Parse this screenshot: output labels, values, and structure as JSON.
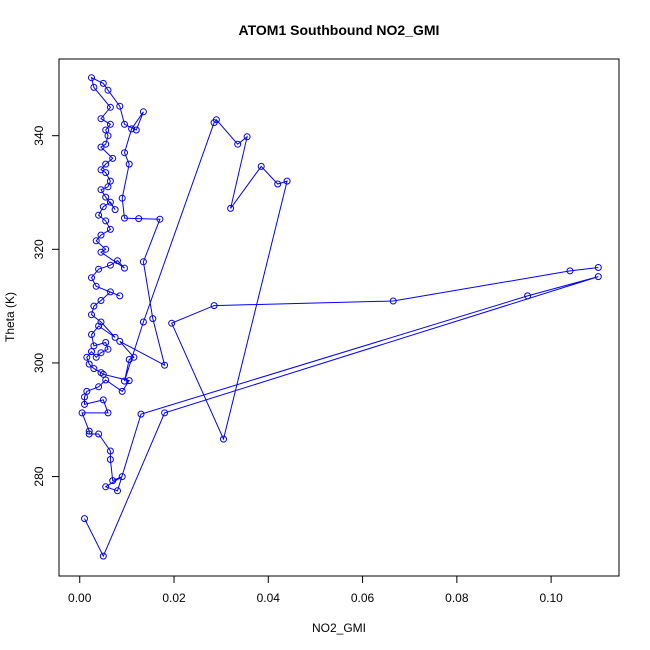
{
  "chart_data": {
    "type": "line",
    "title": "ATOM1 Southbound NO2_GMI",
    "xlabel": "NO2_GMI",
    "ylabel": "Theta (K)",
    "xlim": [
      -0.0044,
      0.1144
    ],
    "ylim": [
      262.5,
      353.5
    ],
    "xticks": [
      0.0,
      0.02,
      0.04,
      0.06,
      0.08,
      0.1
    ],
    "xtick_labels": [
      "0.00",
      "0.02",
      "0.04",
      "0.06",
      "0.08",
      "0.10"
    ],
    "yticks": [
      280,
      300,
      320,
      340
    ],
    "ytick_labels": [
      "280",
      "300",
      "320",
      "340"
    ],
    "grid": false,
    "color": "#0000ff",
    "marker": "open-circle",
    "series": [
      {
        "points": [
          [
            0.001,
            272.6
          ],
          [
            0.005,
            266.0
          ],
          [
            0.018,
            291.2
          ],
          [
            0.11,
            315.2
          ],
          [
            0.095,
            311.8
          ],
          [
            0.013,
            291.0
          ],
          [
            0.008,
            277.5
          ],
          [
            0.0055,
            278.2
          ],
          [
            0.009,
            280.0
          ],
          [
            0.007,
            279.3
          ],
          [
            0.0065,
            283.0
          ],
          [
            0.0065,
            284.5
          ],
          [
            0.004,
            287.5
          ],
          [
            0.002,
            287.5
          ],
          [
            0.002,
            288.0
          ],
          [
            0.0005,
            291.2
          ],
          [
            0.006,
            291.2
          ],
          [
            0.005,
            293.5
          ],
          [
            0.001,
            292.7
          ],
          [
            0.001,
            294.0
          ],
          [
            0.0015,
            295.0
          ],
          [
            0.004,
            295.8
          ],
          [
            0.0055,
            297.0
          ],
          [
            0.009,
            295.0
          ],
          [
            0.0105,
            296.9
          ],
          [
            0.005,
            298.0
          ],
          [
            0.0045,
            298.3
          ],
          [
            0.003,
            299.0
          ],
          [
            0.002,
            299.8
          ],
          [
            0.0015,
            301.0
          ],
          [
            0.0025,
            302.0
          ],
          [
            0.0035,
            301.0
          ],
          [
            0.0045,
            301.8
          ],
          [
            0.006,
            302.4
          ],
          [
            0.0055,
            303.6
          ],
          [
            0.003,
            303.0
          ],
          [
            0.0025,
            305.0
          ],
          [
            0.004,
            306.5
          ],
          [
            0.0075,
            304.5
          ],
          [
            0.0045,
            307.2
          ],
          [
            0.0025,
            308.5
          ],
          [
            0.003,
            310.0
          ],
          [
            0.0045,
            311.0
          ],
          [
            0.0065,
            312.5
          ],
          [
            0.0085,
            311.8
          ],
          [
            0.0035,
            313.5
          ],
          [
            0.0025,
            315.0
          ],
          [
            0.004,
            316.5
          ],
          [
            0.0065,
            317.2
          ],
          [
            0.008,
            318.0
          ],
          [
            0.0095,
            316.7
          ],
          [
            0.0045,
            319.5
          ],
          [
            0.0055,
            320.0
          ],
          [
            0.0035,
            321.5
          ],
          [
            0.0045,
            322.5
          ],
          [
            0.0065,
            323.5
          ],
          [
            0.0055,
            325.0
          ],
          [
            0.004,
            326.0
          ],
          [
            0.005,
            327.5
          ],
          [
            0.0065,
            328.3
          ],
          [
            0.0075,
            327.0
          ],
          [
            0.0055,
            329.2
          ],
          [
            0.0045,
            330.5
          ],
          [
            0.006,
            331.0
          ],
          [
            0.0065,
            332.0
          ],
          [
            0.0055,
            333.5
          ],
          [
            0.0045,
            334.0
          ],
          [
            0.0055,
            335.0
          ],
          [
            0.007,
            336.0
          ],
          [
            0.0045,
            338.0
          ],
          [
            0.0055,
            338.5
          ],
          [
            0.006,
            340.0
          ],
          [
            0.0055,
            341.0
          ],
          [
            0.0065,
            342.0
          ],
          [
            0.0045,
            343.0
          ],
          [
            0.0065,
            345.0
          ],
          [
            0.003,
            348.5
          ],
          [
            0.0025,
            350.2
          ],
          [
            0.005,
            349.2
          ],
          [
            0.006,
            348.0
          ],
          [
            0.0085,
            345.2
          ],
          [
            0.0095,
            342.0
          ],
          [
            0.012,
            341.0
          ],
          [
            0.0135,
            344.2
          ],
          [
            0.011,
            341.2
          ],
          [
            0.0095,
            337.0
          ],
          [
            0.0105,
            335.0
          ],
          [
            0.009,
            329.0
          ],
          [
            0.0095,
            325.5
          ],
          [
            0.0125,
            325.4
          ],
          [
            0.017,
            325.3
          ],
          [
            0.0135,
            317.8
          ],
          [
            0.0155,
            307.8
          ],
          [
            0.018,
            299.6
          ],
          [
            0.0085,
            303.8
          ],
          [
            0.0115,
            301.0
          ],
          [
            0.0105,
            300.6
          ],
          [
            0.0095,
            296.8
          ],
          [
            0.0135,
            307.2
          ],
          [
            0.0285,
            342.3
          ],
          [
            0.029,
            342.8
          ],
          [
            0.0335,
            338.5
          ],
          [
            0.0355,
            339.8
          ],
          [
            0.032,
            327.2
          ],
          [
            0.0385,
            334.6
          ],
          [
            0.042,
            331.5
          ],
          [
            0.044,
            332.0
          ],
          [
            0.0305,
            286.6
          ],
          [
            0.0195,
            307.0
          ],
          [
            0.0285,
            310.1
          ],
          [
            0.0665,
            310.9
          ],
          [
            0.104,
            316.2
          ],
          [
            0.11,
            316.8
          ]
        ]
      }
    ]
  }
}
